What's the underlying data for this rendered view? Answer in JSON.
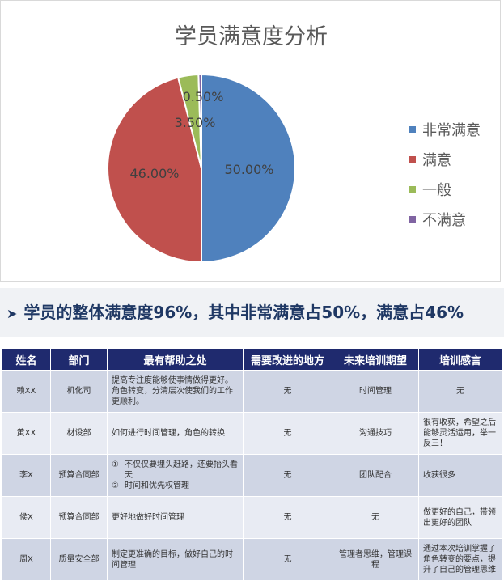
{
  "chart_data": {
    "type": "pie",
    "title": "学员满意度分析",
    "categories": [
      "非常满意",
      "满意",
      "一般",
      "不满意"
    ],
    "values": [
      50.0,
      46.0,
      3.5,
      0.5
    ],
    "labels": [
      "50.00%",
      "46.00%",
      "3.50%",
      "0.50%"
    ],
    "colors": [
      "#4f81bd",
      "#c0504d",
      "#9bbb59",
      "#8064a2"
    ],
    "legend": "right"
  },
  "summary": {
    "arrow": "➤",
    "text": "学员的整体满意度96%，其中非常满意占50%，满意占46%"
  },
  "table": {
    "headers": [
      "姓名",
      "部门",
      "最有帮助之处",
      "需要改进的地方",
      "未来培训期望",
      "培训感言"
    ],
    "rows": [
      {
        "name": "赖XX",
        "dept": "机化司",
        "helpful": "提高专注度能够使事情做得更好。角色转变，分清层次使我们的工作更顺利。",
        "improve": "无",
        "expect": "时间管理",
        "feeling": "无"
      },
      {
        "name": "黄XX",
        "dept": "材设部",
        "helpful": "如何进行时间管理，角色的转换",
        "improve": "无",
        "expect": "沟通技巧",
        "feeling": "很有收获，希望之后能够灵活运用，举一反三！"
      },
      {
        "name": "李X",
        "dept": "预算合同部",
        "helpful_items": [
          {
            "n": "①",
            "t": "不仅仅要埋头赶路，还要抬头看天"
          },
          {
            "n": "②",
            "t": "时间和优先权管理"
          }
        ],
        "improve": "无",
        "expect": "团队配合",
        "feeling": "收获很多"
      },
      {
        "name": "侯X",
        "dept": "预算合同部",
        "helpful": "更好地做好时间管理",
        "improve": "无",
        "expect": "无",
        "feeling": "做更好的自己，带领出更好的团队"
      },
      {
        "name": "周X",
        "dept": "质量安全部",
        "helpful": "制定更准确的目标，做好自己的时间管理",
        "improve": "无",
        "expect": "管理者思维，管理课程",
        "feeling": "通过本次培训掌握了角色转变的要点，提升了自己的管理思维"
      }
    ]
  }
}
